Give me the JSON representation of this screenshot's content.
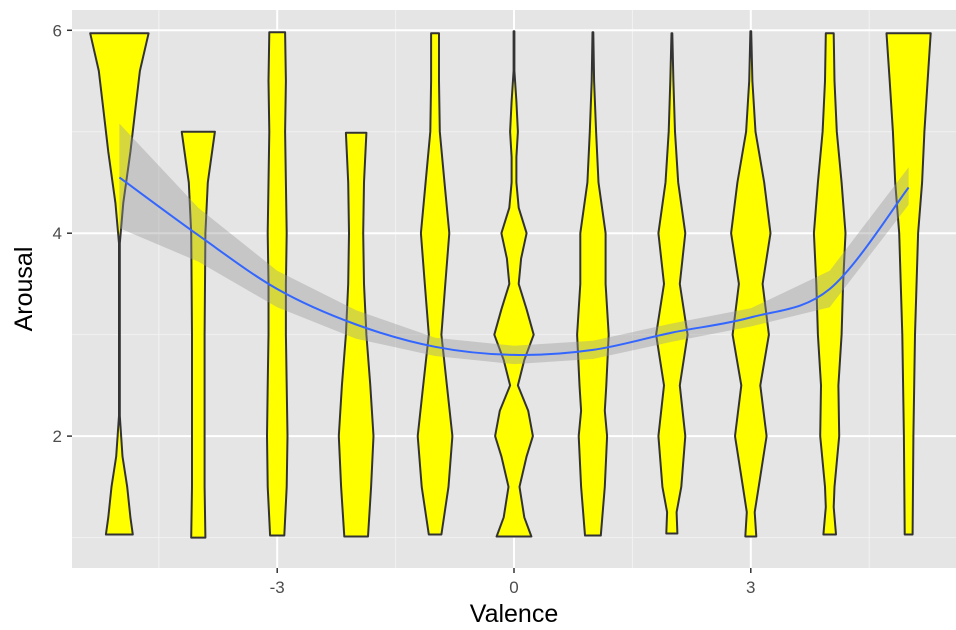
{
  "chart_data": {
    "type": "violin",
    "xlabel": "Valence",
    "ylabel": "Arousal",
    "xlim": [
      -5.6,
      5.6
    ],
    "ylim": [
      0.7,
      6.2
    ],
    "x_ticks": [
      -3,
      0,
      3
    ],
    "y_ticks": [
      2,
      4,
      6
    ],
    "grid": true,
    "colors": {
      "panel": "#e5e5e5",
      "grid_major": "#ffffff",
      "grid_minor": "#f2f2f2",
      "violin_fill": "#ffff00",
      "violin_stroke": "#333333",
      "smooth_line": "#3366ff",
      "ribbon": "#999999"
    },
    "violins": [
      {
        "x": -5,
        "ymin": 1.03,
        "ymax": 5.97,
        "widths": [
          [
            1.03,
            0.17
          ],
          [
            1.2,
            0.14
          ],
          [
            1.5,
            0.1
          ],
          [
            1.8,
            0.04
          ],
          [
            2.2,
            0.005
          ],
          [
            3.9,
            0.005
          ],
          [
            4.3,
            0.05
          ],
          [
            4.8,
            0.14
          ],
          [
            5.2,
            0.2
          ],
          [
            5.6,
            0.26
          ],
          [
            5.97,
            0.37
          ]
        ]
      },
      {
        "x": -4,
        "ymin": 1.0,
        "ymax": 5.0,
        "widths": [
          [
            1.0,
            0.09
          ],
          [
            1.5,
            0.08
          ],
          [
            2.0,
            0.08
          ],
          [
            3.0,
            0.08
          ],
          [
            4.0,
            0.09
          ],
          [
            4.5,
            0.12
          ],
          [
            5.0,
            0.21
          ]
        ]
      },
      {
        "x": -3,
        "ymin": 1.02,
        "ymax": 5.98,
        "widths": [
          [
            1.02,
            0.09
          ],
          [
            1.5,
            0.12
          ],
          [
            2.0,
            0.13
          ],
          [
            2.5,
            0.12
          ],
          [
            3.0,
            0.11
          ],
          [
            3.5,
            0.11
          ],
          [
            4.0,
            0.12
          ],
          [
            4.5,
            0.11
          ],
          [
            5.0,
            0.1
          ],
          [
            5.5,
            0.11
          ],
          [
            5.98,
            0.1
          ]
        ]
      },
      {
        "x": -2,
        "ymin": 1.01,
        "ymax": 4.99,
        "widths": [
          [
            1.01,
            0.15
          ],
          [
            1.5,
            0.19
          ],
          [
            2.0,
            0.22
          ],
          [
            2.5,
            0.18
          ],
          [
            3.0,
            0.13
          ],
          [
            3.5,
            0.1
          ],
          [
            4.0,
            0.09
          ],
          [
            4.5,
            0.1
          ],
          [
            4.99,
            0.13
          ]
        ]
      },
      {
        "x": -1,
        "ymin": 1.03,
        "ymax": 5.97,
        "widths": [
          [
            1.03,
            0.08
          ],
          [
            1.5,
            0.17
          ],
          [
            2.0,
            0.22
          ],
          [
            2.5,
            0.15
          ],
          [
            3.0,
            0.08
          ],
          [
            3.5,
            0.13
          ],
          [
            4.0,
            0.18
          ],
          [
            4.5,
            0.12
          ],
          [
            5.0,
            0.06
          ],
          [
            5.5,
            0.05
          ],
          [
            5.97,
            0.05
          ]
        ]
      },
      {
        "x": 0,
        "ymin": 1.01,
        "ymax": 5.99,
        "widths": [
          [
            1.01,
            0.22
          ],
          [
            1.2,
            0.13
          ],
          [
            1.5,
            0.07
          ],
          [
            1.8,
            0.16
          ],
          [
            2.0,
            0.24
          ],
          [
            2.25,
            0.18
          ],
          [
            2.5,
            0.05
          ],
          [
            2.75,
            0.13
          ],
          [
            3.0,
            0.25
          ],
          [
            3.25,
            0.16
          ],
          [
            3.5,
            0.06
          ],
          [
            3.75,
            0.09
          ],
          [
            4.0,
            0.16
          ],
          [
            4.25,
            0.06
          ],
          [
            4.5,
            0.03
          ],
          [
            4.75,
            0.03
          ],
          [
            5.0,
            0.05
          ],
          [
            5.3,
            0.03
          ],
          [
            5.6,
            0.005
          ],
          [
            5.99,
            0.005
          ]
        ]
      },
      {
        "x": 1,
        "ymin": 1.02,
        "ymax": 5.98,
        "widths": [
          [
            1.02,
            0.1
          ],
          [
            1.5,
            0.15
          ],
          [
            2.0,
            0.18
          ],
          [
            2.25,
            0.15
          ],
          [
            2.5,
            0.17
          ],
          [
            3.0,
            0.2
          ],
          [
            3.5,
            0.16
          ],
          [
            4.0,
            0.16
          ],
          [
            4.5,
            0.07
          ],
          [
            5.0,
            0.04
          ],
          [
            5.5,
            0.015
          ],
          [
            5.98,
            0.005
          ]
        ]
      },
      {
        "x": 2,
        "ymin": 1.04,
        "ymax": 5.97,
        "widths": [
          [
            1.04,
            0.07
          ],
          [
            1.25,
            0.06
          ],
          [
            1.5,
            0.12
          ],
          [
            2.0,
            0.17
          ],
          [
            2.5,
            0.1
          ],
          [
            3.0,
            0.2
          ],
          [
            3.5,
            0.1
          ],
          [
            4.0,
            0.17
          ],
          [
            4.5,
            0.08
          ],
          [
            5.0,
            0.04
          ],
          [
            5.5,
            0.02
          ],
          [
            5.97,
            0.005
          ]
        ]
      },
      {
        "x": 3,
        "ymin": 1.01,
        "ymax": 5.99,
        "widths": [
          [
            1.01,
            0.07
          ],
          [
            1.25,
            0.05
          ],
          [
            1.5,
            0.1
          ],
          [
            2.0,
            0.2
          ],
          [
            2.5,
            0.12
          ],
          [
            3.0,
            0.23
          ],
          [
            3.5,
            0.15
          ],
          [
            4.0,
            0.25
          ],
          [
            4.5,
            0.17
          ],
          [
            5.0,
            0.06
          ],
          [
            5.5,
            0.02
          ],
          [
            5.99,
            0.005
          ]
        ]
      },
      {
        "x": 4,
        "ymin": 1.03,
        "ymax": 5.97,
        "widths": [
          [
            1.03,
            0.08
          ],
          [
            1.3,
            0.05
          ],
          [
            1.5,
            0.06
          ],
          [
            2.0,
            0.12
          ],
          [
            2.5,
            0.11
          ],
          [
            3.0,
            0.15
          ],
          [
            3.5,
            0.17
          ],
          [
            4.0,
            0.2
          ],
          [
            4.5,
            0.15
          ],
          [
            5.0,
            0.09
          ],
          [
            5.5,
            0.06
          ],
          [
            5.97,
            0.05
          ]
        ]
      },
      {
        "x": 5,
        "ymin": 1.03,
        "ymax": 5.97,
        "widths": [
          [
            1.03,
            0.05
          ],
          [
            2.0,
            0.06
          ],
          [
            3.0,
            0.08
          ],
          [
            4.0,
            0.12
          ],
          [
            4.5,
            0.17
          ],
          [
            5.0,
            0.2
          ],
          [
            5.5,
            0.24
          ],
          [
            5.97,
            0.28
          ]
        ]
      }
    ],
    "smooth": {
      "x": [
        -5,
        -4,
        -3,
        -2,
        -1,
        0,
        1,
        2,
        3,
        4,
        5
      ],
      "y": [
        4.55,
        3.98,
        3.45,
        3.1,
        2.88,
        2.8,
        2.85,
        3.02,
        3.17,
        3.45,
        4.45
      ],
      "se_low": [
        4.05,
        3.72,
        3.27,
        2.96,
        2.79,
        2.71,
        2.76,
        2.93,
        3.08,
        3.27,
        4.28
      ],
      "se_high": [
        5.08,
        4.25,
        3.63,
        3.24,
        2.97,
        2.89,
        2.94,
        3.11,
        3.26,
        3.63,
        4.65
      ]
    }
  }
}
